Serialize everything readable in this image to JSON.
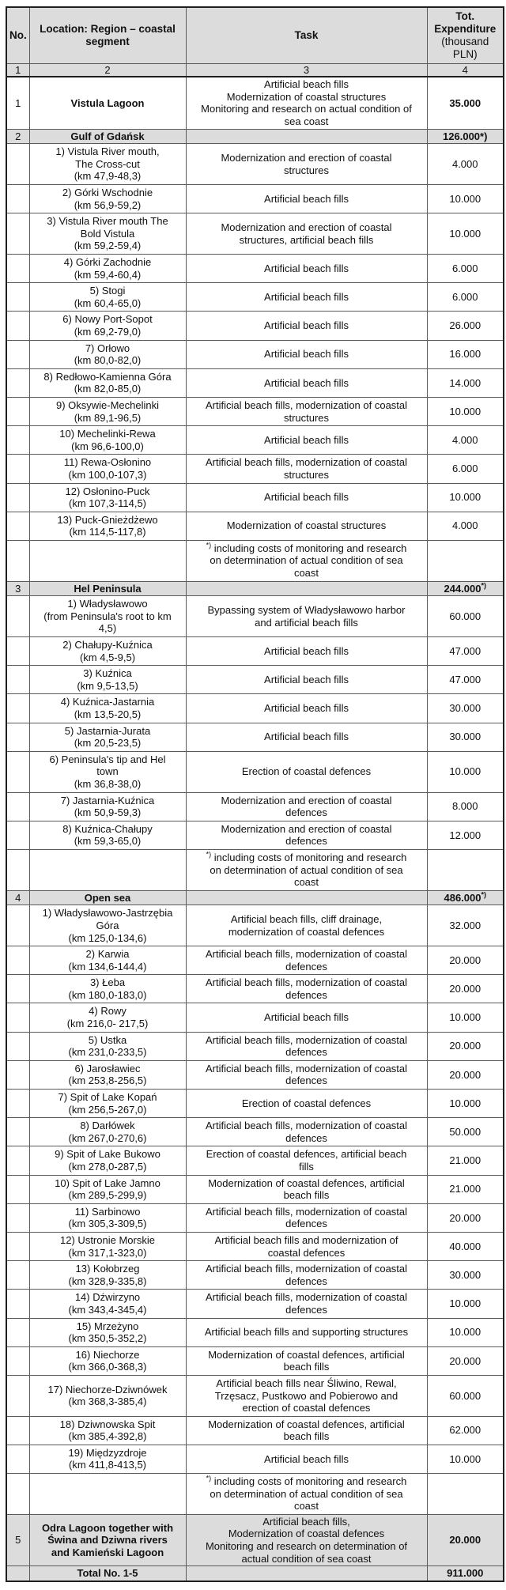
{
  "table": {
    "footnote_mark": "*)",
    "colors": {
      "shaded_bg": "#dcdcdc",
      "border_inner": "#5a5a5a",
      "border_outer": "#1f1f1f",
      "text": "#111111"
    },
    "header": {
      "no": "No.",
      "location": "Location: Region – coastal segment",
      "task": "Task",
      "expenditure_title": "Tot. Expenditure",
      "expenditure_unit": "(thousand\nPLN)"
    },
    "column_numbers": [
      "1",
      "2",
      "3",
      "4"
    ],
    "rows": [
      {
        "no": "1",
        "loc": "Vistula Lagoon",
        "task": "Artificial beach fills\nModernization of coastal structures\nMonitoring and research on actual condition of\nsea coast",
        "exp": "35.000",
        "bold": true,
        "shaded": false,
        "section": true
      },
      {
        "no": "2",
        "loc": "Gulf of Gdańsk",
        "task": "",
        "exp": "126.000*)",
        "bold": true,
        "shaded": true,
        "section": true
      },
      {
        "loc": "1) Vistula River mouth,\nThe Cross-cut\n(km 47,9-48,3)",
        "task": "Modernization and erection of coastal\nstructures",
        "exp": "4.000"
      },
      {
        "loc": "2) Górki Wschodnie\n(km 56,9-59,2)",
        "task": "Artificial beach fills",
        "exp": "10.000"
      },
      {
        "loc": "3) Vistula River mouth The\nBold Vistula\n(km 59,2-59,4)",
        "task": "Modernization and erection of coastal\nstructures, artificial beach fills",
        "exp": "10.000"
      },
      {
        "loc": "4) Górki Zachodnie\n(km 59,4-60,4)",
        "task": "Artificial beach fills",
        "exp": "6.000"
      },
      {
        "loc": "5) Stogi\n(km 60,4-65,0)",
        "task": "Artificial beach fills",
        "exp": "6.000"
      },
      {
        "loc": "6) Nowy Port-Sopot\n(km 69,2-79,0)",
        "task": "Artificial beach fills",
        "exp": "26.000"
      },
      {
        "loc": "7) Orłowo\n(km 80,0-82,0)",
        "task": "Artificial beach fills",
        "exp": "16.000"
      },
      {
        "loc": "8) Redłowo-Kamienna Góra\n(km 82,0-85,0)",
        "task": "Artificial beach fills",
        "exp": "14.000"
      },
      {
        "loc": "9) Oksywie-Mechelinki\n(km 89,1-96,5)",
        "task": "Artificial beach fills, modernization of coastal\nstructures",
        "exp": "10.000"
      },
      {
        "loc": "10) Mechelinki-Rewa\n(km 96,6-100,0)",
        "task": "Artificial beach fills",
        "exp": "4.000"
      },
      {
        "loc": "11) Rewa-Osłonino\n(km 100,0-107,3)",
        "task": "Artificial beach fills, modernization of coastal\nstructures",
        "exp": "6.000"
      },
      {
        "loc": "12) Osłonino-Puck\n(km 107,3-114,5)",
        "task": "Artificial beach fills",
        "exp": "10.000"
      },
      {
        "loc": "13) Puck-Gnieżdżewo\n(km 114,5-117,8)",
        "task": "Modernization of coastal structures",
        "exp": "4.000"
      },
      {
        "note": true,
        "task": "including costs of monitoring and research\non determination of actual condition of sea\ncoast"
      },
      {
        "no": "3",
        "loc": "Hel Peninsula",
        "task": "",
        "exp": "244.000",
        "exp_sup": "*)",
        "bold": true,
        "shaded": true,
        "section": true
      },
      {
        "loc": "1) Władysławowo\n(from Peninsula's root to km\n4,5)",
        "task": "Bypassing system of Władysławowo harbor\nand artificial beach fills",
        "exp": "60.000"
      },
      {
        "loc": "2) Chałupy-Kuźnica\n(km 4,5-9,5)",
        "task": "Artificial beach fills",
        "exp": "47.000"
      },
      {
        "loc": "3) Kuźnica\n(km 9,5-13,5)",
        "task": "Artificial beach fills",
        "exp": "47.000"
      },
      {
        "loc": "4) Kuźnica-Jastarnia\n(km 13,5-20,5)",
        "task": "Artificial beach fills",
        "exp": "30.000"
      },
      {
        "loc": "5) Jastarnia-Jurata\n(km 20,5-23,5)",
        "task": "Artificial beach fills",
        "exp": "30.000"
      },
      {
        "loc": "6) Peninsula's tip and Hel\ntown\n(km 36,8-38,0)",
        "task": "Erection of coastal defences",
        "exp": "10.000"
      },
      {
        "loc": "7) Jastarnia-Kuźnica\n(km 50,9-59,3)",
        "task": "Modernization and erection of coastal\ndefences",
        "exp": "8.000"
      },
      {
        "loc": "8) Kuźnica-Chałupy\n(km 59,3-65,0)",
        "task": "Modernization and erection of coastal\ndefences",
        "exp": "12.000"
      },
      {
        "note": true,
        "task": "including costs of monitoring and research\non determination of actual condition of sea\ncoast"
      },
      {
        "no": "4",
        "loc": "Open sea",
        "task": "",
        "exp": "486.000",
        "exp_sup": "*)",
        "bold": true,
        "shaded": true,
        "section": true
      },
      {
        "loc": "1) Władysławowo-Jastrzębia\nGóra\n(km 125,0-134,6)",
        "task": "Artificial beach fills, cliff drainage,\nmodernization of coastal defences",
        "exp": "32.000"
      },
      {
        "loc": "2) Karwia\n(km 134,6-144,4)",
        "task": "Artificial beach fills, modernization of coastal\ndefences",
        "exp": "20.000"
      },
      {
        "loc": "3) Łeba\n(km 180,0-183,0)",
        "task": "Artificial beach fills, modernization of coastal\ndefences",
        "exp": "20.000"
      },
      {
        "loc": "4) Rowy\n(km 216,0- 217,5)",
        "task": "Artificial beach fills",
        "exp": "10.000"
      },
      {
        "loc": "5) Ustka\n(km 231,0-233,5)",
        "task": "Artificial beach fills, modernization of coastal\ndefences",
        "exp": "20.000"
      },
      {
        "loc": "6) Jarosławiec\n(km 253,8-256,5)",
        "task": "Artificial beach fills, modernization of coastal\ndefences",
        "exp": "20.000"
      },
      {
        "loc": "7) Spit of Lake Kopań\n(km 256,5-267,0)",
        "task": "Erection of coastal defences",
        "exp": "10.000"
      },
      {
        "loc": "8) Darłówek\n(km 267,0-270,6)",
        "task": "Artificial beach fills, modernization of coastal\ndefences",
        "exp": "50.000"
      },
      {
        "loc": "9) Spit of Lake Bukowo\n(km 278,0-287,5)",
        "task": "Erection of coastal defences, artificial beach\nfills",
        "exp": "21.000"
      },
      {
        "loc": "10) Spit of Lake Jamno\n(km 289,5-299,9)",
        "task": "Modernization of coastal defences, artificial\nbeach fills",
        "exp": "21.000"
      },
      {
        "loc": "11) Sarbinowo\n(km 305,3-309,5)",
        "task": "Artificial beach fills, modernization of coastal\ndefences",
        "exp": "20.000"
      },
      {
        "loc": "12) Ustronie Morskie\n(km 317,1-323,0)",
        "task": "Artificial beach fills and modernization of\ncoastal defences",
        "exp": "40.000"
      },
      {
        "loc": "13) Kołobrzeg\n(km 328,9-335,8)",
        "task": "Artificial beach fills, modernization of coastal\ndefences",
        "exp": "30.000"
      },
      {
        "loc": "14) Dźwirzyno\n(km 343,4-345,4)",
        "task": "Artificial beach fills, modernization of coastal\ndefences",
        "exp": "10.000"
      },
      {
        "loc": "15) Mrzeżyno\n(km 350,5-352,2)",
        "task": "Artificial beach fills and supporting structures",
        "exp": "10.000"
      },
      {
        "loc": "16) Niechorze\n(km 366,0-368,3)",
        "task": "Modernization of coastal defences, artificial\nbeach fills",
        "exp": "20.000"
      },
      {
        "loc": "17) Niechorze-Dziwnówek\n(km 368,3-385,4)",
        "task": "Artificial beach fills near Śliwino, Rewal,\nTrzęsacz, Pustkowo and Pobierowo and\nerection of coastal defences",
        "exp": "60.000"
      },
      {
        "loc": "18) Dziwnowska Spit\n(km 385,4-392,8)",
        "task": "Modernization of coastal defences, artificial\nbeach fills",
        "exp": "62.000"
      },
      {
        "loc": "19) Międzyzdroje\n(km 411,8-413,5)",
        "task": "Artificial beach fills",
        "exp": "10.000"
      },
      {
        "note": true,
        "task": "including costs of monitoring and research\non determination of actual condition of sea\ncoast"
      },
      {
        "no": "5",
        "loc": "Odra Lagoon together with\nŚwina and Dziwna rivers\nand Kamieński Lagoon",
        "task": "Artificial beach fills,\nModernization of coastal defences\nMonitoring and research on determination of\nactual condition of sea coast",
        "exp": "20.000",
        "bold": true,
        "shaded": true,
        "section": true
      },
      {
        "loc": "Total No. 1-5",
        "task": "",
        "exp": "911.000",
        "bold": true,
        "shaded": true,
        "section": true,
        "total": true
      }
    ]
  }
}
